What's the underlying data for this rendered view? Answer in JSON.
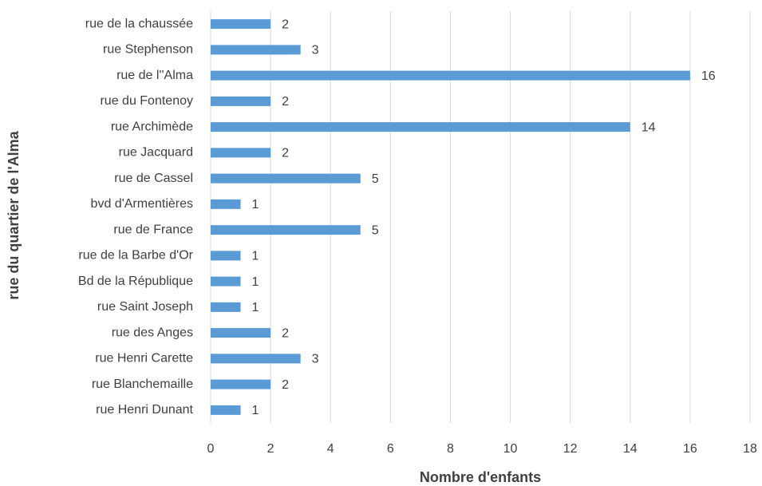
{
  "chart_data": {
    "type": "bar",
    "orientation": "horizontal",
    "xlabel": "Nombre d'enfants",
    "ylabel": "rue du quartier de l'Alma",
    "categories": [
      "rue de la chaussée",
      "rue Stephenson",
      "rue de l''Alma",
      "rue du Fontenoy",
      "rue Archimède",
      "rue Jacquard",
      "rue de Cassel",
      "bvd d'Armentières",
      "rue de France",
      "rue de la Barbe d'Or",
      "Bd de la République",
      "rue Saint Joseph",
      "rue des Anges",
      "rue Henri Carette",
      "rue Blanchemaille",
      "rue Henri Dunant"
    ],
    "values": [
      2,
      3,
      16,
      2,
      14,
      2,
      5,
      1,
      5,
      1,
      1,
      1,
      2,
      3,
      2,
      1
    ],
    "color": "#5b9bd5",
    "xlim": [
      0,
      18
    ],
    "xticks": [
      0,
      2,
      4,
      6,
      8,
      10,
      12,
      14,
      16,
      18
    ],
    "grid": true
  }
}
